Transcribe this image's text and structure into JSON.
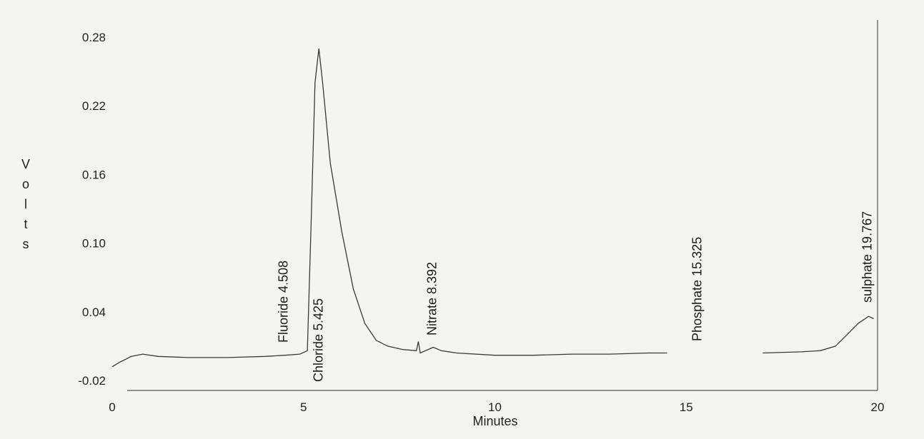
{
  "chart_data": {
    "type": "line",
    "title": "",
    "xlabel": "Minutes",
    "ylabel": "Volts",
    "xlim": [
      0,
      20
    ],
    "ylim": [
      -0.02,
      0.28
    ],
    "x_ticks": [
      "0",
      "5",
      "10",
      "15",
      "20"
    ],
    "x_tick_values": [
      0,
      5,
      10,
      15,
      20
    ],
    "y_ticks": [
      "-0.02",
      "0.04",
      "0.10",
      "0.16",
      "0.22",
      "0.28"
    ],
    "y_tick_values": [
      -0.02,
      0.04,
      0.1,
      0.16,
      0.22,
      0.28
    ],
    "grid": false,
    "series": [
      {
        "color": "#3a3a3a",
        "points": [
          [
            0.0,
            -0.008
          ],
          [
            0.2,
            -0.004
          ],
          [
            0.5,
            0.001
          ],
          [
            0.8,
            0.003
          ],
          [
            1.2,
            0.001
          ],
          [
            2.0,
            0.0
          ],
          [
            3.0,
            0.0
          ],
          [
            4.0,
            0.001
          ],
          [
            4.508,
            0.002
          ],
          [
            4.9,
            0.003
          ],
          [
            5.1,
            0.006
          ],
          [
            5.2,
            0.12
          ],
          [
            5.3,
            0.24
          ],
          [
            5.4,
            0.27
          ],
          [
            5.5,
            0.24
          ],
          [
            5.7,
            0.17
          ],
          [
            6.0,
            0.11
          ],
          [
            6.3,
            0.06
          ],
          [
            6.6,
            0.03
          ],
          [
            6.9,
            0.015
          ],
          [
            7.2,
            0.01
          ],
          [
            7.6,
            0.007
          ],
          [
            7.95,
            0.006
          ],
          [
            8.0,
            0.014
          ],
          [
            8.05,
            0.004
          ],
          [
            8.392,
            0.009
          ],
          [
            8.6,
            0.006
          ],
          [
            9.0,
            0.004
          ],
          [
            10.0,
            0.002
          ],
          [
            11.0,
            0.002
          ],
          [
            12.0,
            0.003
          ],
          [
            13.0,
            0.003
          ],
          [
            14.0,
            0.004
          ],
          [
            14.5,
            0.004
          ],
          [
            17.0,
            0.004
          ],
          [
            18.0,
            0.005
          ],
          [
            18.5,
            0.006
          ],
          [
            18.9,
            0.01
          ],
          [
            19.2,
            0.02
          ],
          [
            19.5,
            0.03
          ],
          [
            19.767,
            0.036
          ],
          [
            19.9,
            0.034
          ]
        ],
        "gaps": [
          [
            14.5,
            17.0
          ]
        ]
      }
    ],
    "annotations": [
      {
        "text": "Fluoride  4.508",
        "x": 4.508
      },
      {
        "text": "Chloride  5.425",
        "x": 5.425
      },
      {
        "text": "Nitrate  8.392",
        "x": 8.392
      },
      {
        "text": "Phosphate  15.325",
        "x": 15.325
      },
      {
        "text": "sulphate  19.767",
        "x": 19.767
      }
    ]
  }
}
